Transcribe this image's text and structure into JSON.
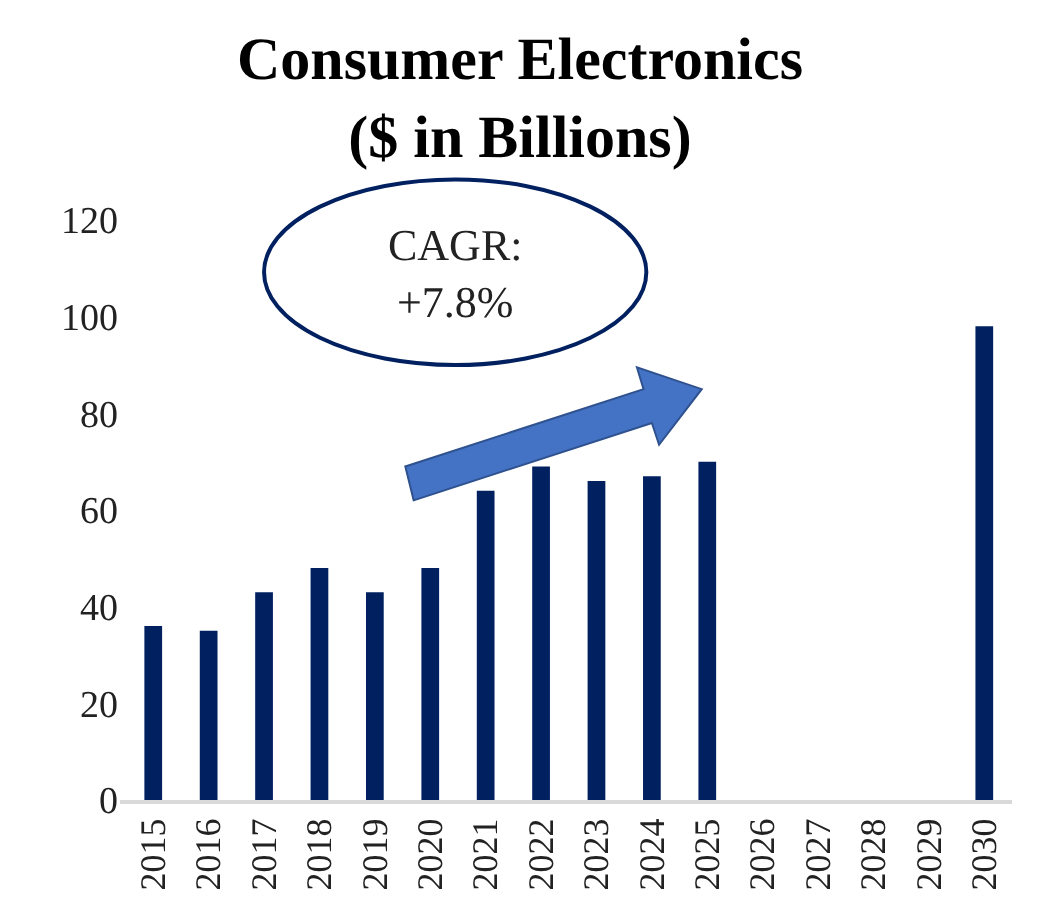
{
  "chart_data": {
    "type": "bar",
    "title": "Consumer Electronics ($ in Billions)",
    "categories": [
      "2015",
      "2016",
      "2017",
      "2018",
      "2019",
      "2020",
      "2021",
      "2022",
      "2023",
      "2024",
      "2025",
      "2026",
      "2027",
      "2028",
      "2029",
      "2030"
    ],
    "values": [
      36,
      35,
      43,
      48,
      43,
      48,
      64,
      69,
      66,
      67,
      70,
      null,
      null,
      null,
      null,
      98
    ],
    "color": "#002060",
    "ylim": [
      0,
      120
    ],
    "yticks": [
      0,
      20,
      40,
      60,
      80,
      100,
      120
    ],
    "annotations": [
      "CAGR:\n+7.8%"
    ]
  }
}
